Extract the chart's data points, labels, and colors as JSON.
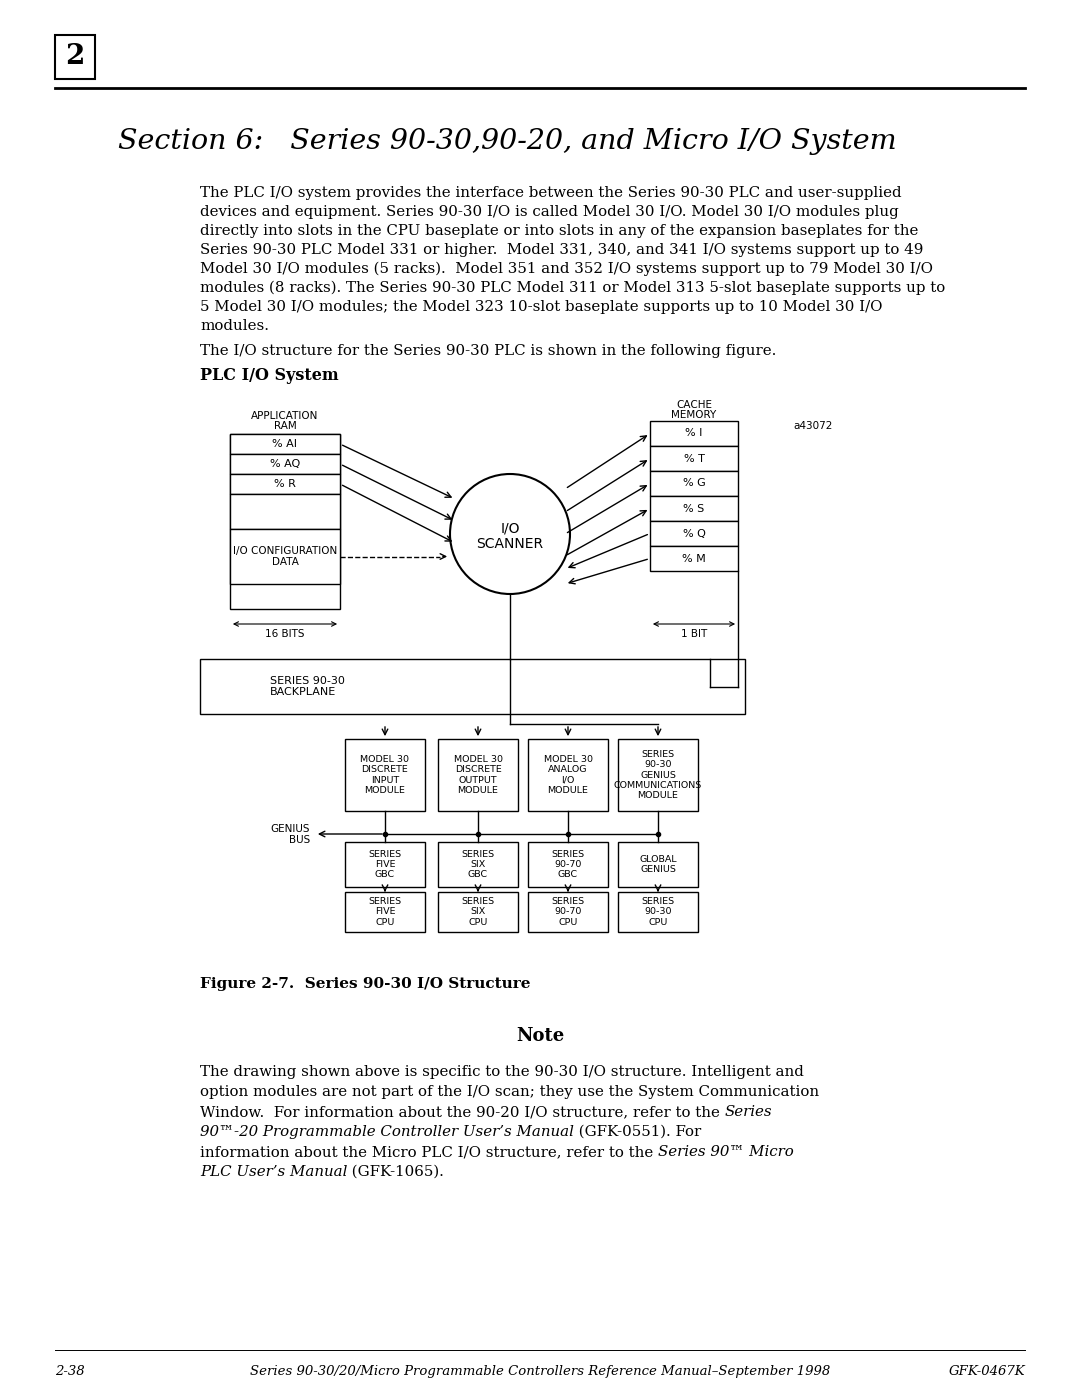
{
  "page_number": "2",
  "section_title": "Section 6:   Series 90-30,90-20, and Micro I/O System",
  "body_text_lines": [
    "The PLC I/O system provides the interface between the Series 90-30 PLC and user-supplied",
    "devices and equipment. Series 90-30 I/O is called Model 30 I/O. Model 30 I/O modules plug",
    "directly into slots in the CPU baseplate or into slots in any of the expansion baseplates for the",
    "Series 90-30 PLC Model 331 or higher.  Model 331, 340, and 341 I/O systems support up to 49",
    "Model 30 I/O modules (5 racks).  Model 351 and 352 I/O systems support up to 79 Model 30 I/O",
    "modules (8 racks). The Series 90-30 PLC Model 311 or Model 313 5-slot baseplate supports up to",
    "5 Model 30 I/O modules; the Model 323 10-slot baseplate supports up to 10 Model 30 I/O",
    "modules."
  ],
  "figure_intro": "The I/O structure for the Series 90-30 PLC is shown in the following figure.",
  "diagram_label": "PLC I/O System",
  "figure_caption": "Figure 2-7.  Series 90-30 I/O Structure",
  "note_title": "Note",
  "footer_left": "2-38",
  "footer_center": "Series 90-30/20/Micro Programmable Controllers Reference Manual–September 1998",
  "footer_right": "GFK-0467K",
  "bg_color": "#ffffff"
}
